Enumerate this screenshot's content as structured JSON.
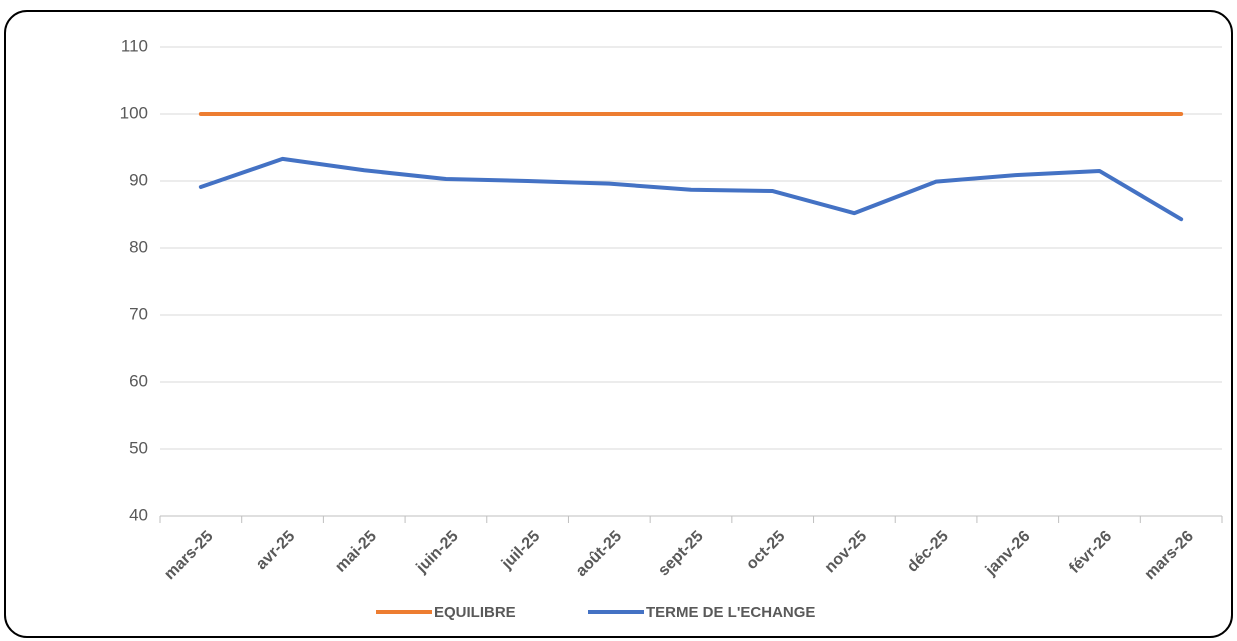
{
  "chart_data": {
    "type": "line",
    "categories": [
      "mars-25",
      "avr-25",
      "mai-25",
      "juin-25",
      "juil-25",
      "août-25",
      "sept-25",
      "oct-25",
      "nov-25",
      "déc-25",
      "janv-26",
      "févr-26",
      "mars-26"
    ],
    "series": [
      {
        "name": "EQUILIBRE",
        "color": "#ed7d31",
        "values": [
          100,
          100,
          100,
          100,
          100,
          100,
          100,
          100,
          100,
          100,
          100,
          100,
          100
        ]
      },
      {
        "name": "TERME DE L'ECHANGE",
        "color": "#4472c4",
        "values": [
          89.1,
          93.3,
          91.6,
          90.3,
          90.0,
          89.6,
          88.7,
          88.5,
          85.2,
          89.9,
          90.9,
          91.5,
          84.3
        ]
      }
    ],
    "ylim": [
      40,
      110
    ],
    "yticks": [
      40,
      50,
      60,
      70,
      80,
      90,
      100,
      110
    ],
    "grid": true,
    "legend": "bottom"
  }
}
